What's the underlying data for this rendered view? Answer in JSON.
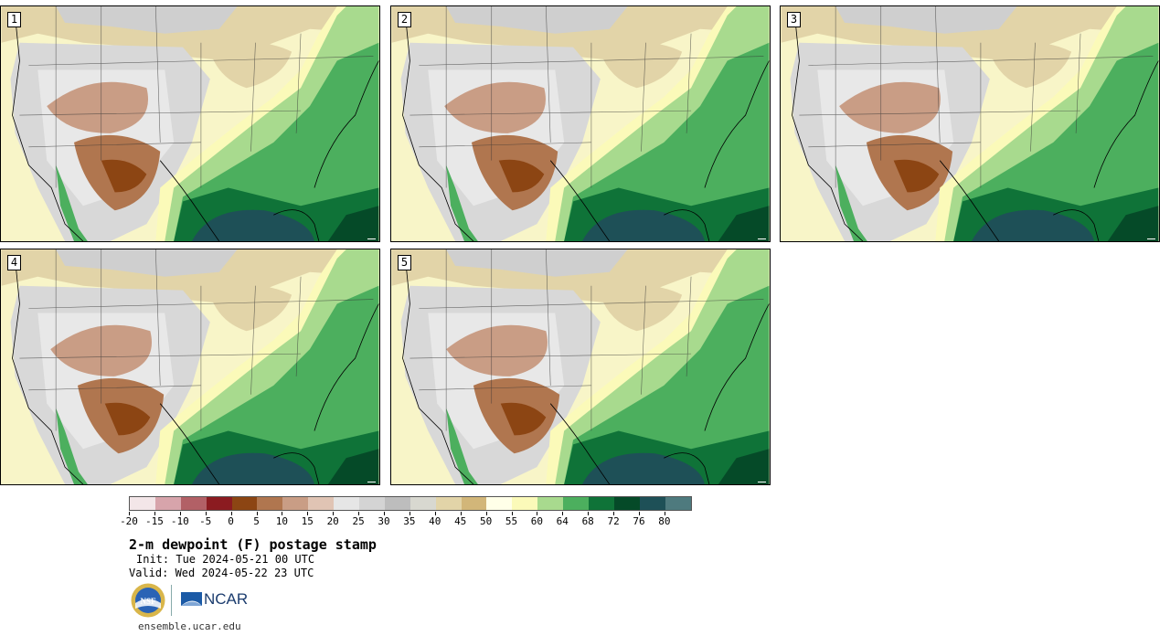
{
  "panels": [
    {
      "label": "1"
    },
    {
      "label": "2"
    },
    {
      "label": "3"
    },
    {
      "label": "4"
    },
    {
      "label": "5"
    }
  ],
  "colorbar": {
    "units": "F",
    "colors": [
      "#f3e6e8",
      "#d7a4ab",
      "#b26066",
      "#8b1b20",
      "#8c4513",
      "#b0764f",
      "#c99d85",
      "#e0c4b4",
      "#e6e6e6",
      "#d4d4d4",
      "#bdbdbd",
      "#d8d8d0",
      "#e2d4a8",
      "#d2b679",
      "#ffffe8",
      "#fbfab9",
      "#a8da8e",
      "#4caf5e",
      "#0f7338",
      "#054a28",
      "#1e5057",
      "#4e7a7e"
    ],
    "ticks": [
      "-20",
      "-15",
      "-10",
      "-5",
      "0",
      "5",
      "10",
      "15",
      "20",
      "25",
      "30",
      "35",
      "40",
      "45",
      "50",
      "55",
      "60",
      "64",
      "68",
      "72",
      "76",
      "80"
    ]
  },
  "info": {
    "title": "2-m dewpoint (F) postage stamp",
    "init": "Init: Tue 2024-05-21 00 UTC",
    "valid": "Valid: Wed 2024-05-22 23 UTC",
    "site": "ensemble.ucar.edu",
    "logo_nsf": "NSF",
    "logo_ncar": "NCAR"
  }
}
